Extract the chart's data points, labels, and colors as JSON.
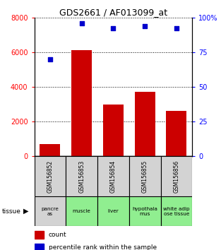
{
  "title": "GDS2661 / AF013099_at",
  "samples": [
    "GSM156852",
    "GSM156853",
    "GSM156854",
    "GSM156855",
    "GSM156856"
  ],
  "counts": [
    700,
    6100,
    3000,
    3700,
    2600
  ],
  "percentiles": [
    70,
    96,
    92,
    94,
    92
  ],
  "tissues": [
    "pancre\nas",
    "muscle",
    "liver",
    "hypothala\nmus",
    "white adip\nose tissue"
  ],
  "tissue_colors": [
    "#d3d3d3",
    "#90ee90",
    "#90ee90",
    "#90ee90",
    "#90ee90"
  ],
  "bar_color": "#cc0000",
  "dot_color": "#0000cc",
  "left_ylim": [
    0,
    8000
  ],
  "right_ylim": [
    0,
    100
  ],
  "left_yticks": [
    0,
    2000,
    4000,
    6000,
    8000
  ],
  "right_yticks": [
    0,
    25,
    50,
    75,
    100
  ],
  "right_yticklabels": [
    "0",
    "25",
    "50",
    "75",
    "100%"
  ],
  "bg_color": "#ffffff",
  "plot_bg": "#ffffff",
  "gsm_box_color": "#d3d3d3",
  "gsm_box_edge": "#000000",
  "tissue_edge": "#000000"
}
